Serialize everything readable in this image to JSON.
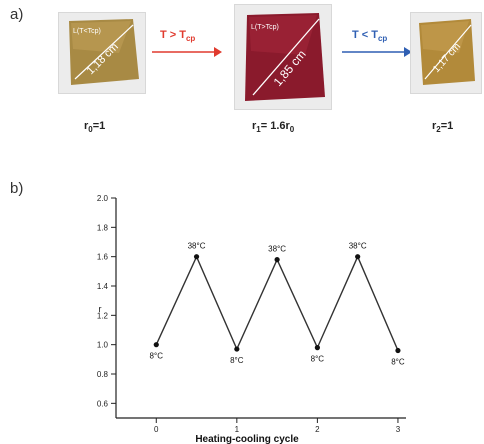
{
  "panel_a": {
    "label": "a)",
    "samples": [
      {
        "size_text": "1,18 cm",
        "corner_text": "L(T<Tcp)",
        "r_prefix": "r",
        "r_sub": "0",
        "r_suffix": "=1",
        "color": "#a88a44"
      },
      {
        "size_text": "1,85 cm",
        "corner_text": "L(T>Tcp)",
        "r_prefix": "r",
        "r_sub": "1",
        "r_suffix": "= 1.6r",
        "r_sub2": "0",
        "color": "#8a1a2c"
      },
      {
        "size_text": "1,17 cm",
        "corner_text": "",
        "r_prefix": "r",
        "r_sub": "2",
        "r_suffix": "=1",
        "color": "#b28a3a"
      }
    ],
    "arrows": [
      {
        "text_main": "T > T",
        "text_sub": "cp",
        "color": "#e03a2e"
      },
      {
        "text_main": "T < T",
        "text_sub": "cp",
        "color": "#2f5fb3"
      }
    ]
  },
  "panel_b": {
    "label": "b)"
  },
  "chart_data": {
    "type": "line",
    "title": "",
    "xlabel": "Heating-cooling cycle",
    "ylabel": "r",
    "xlim": [
      -0.5,
      3.1
    ],
    "ylim": [
      0.5,
      2.0
    ],
    "xticks": [
      0,
      1,
      2,
      3
    ],
    "yticks": [
      0.6,
      0.8,
      1.0,
      1.2,
      1.4,
      1.6,
      1.8,
      2.0
    ],
    "ytick_labels": [
      "0.6",
      "0.8",
      "1.0",
      "1.2",
      "1.4",
      "1.6",
      "1.8",
      "2.0"
    ],
    "x": [
      0,
      0.5,
      1,
      1.5,
      2,
      2.5,
      3
    ],
    "y": [
      1.0,
      1.6,
      0.97,
      1.58,
      0.98,
      1.6,
      0.96
    ],
    "point_labels": [
      "8°C",
      "38°C",
      "8°C",
      "38°C",
      "8°C",
      "38°C",
      "8°C"
    ],
    "grid": false,
    "line_color": "#333333",
    "marker_color": "#111111"
  }
}
